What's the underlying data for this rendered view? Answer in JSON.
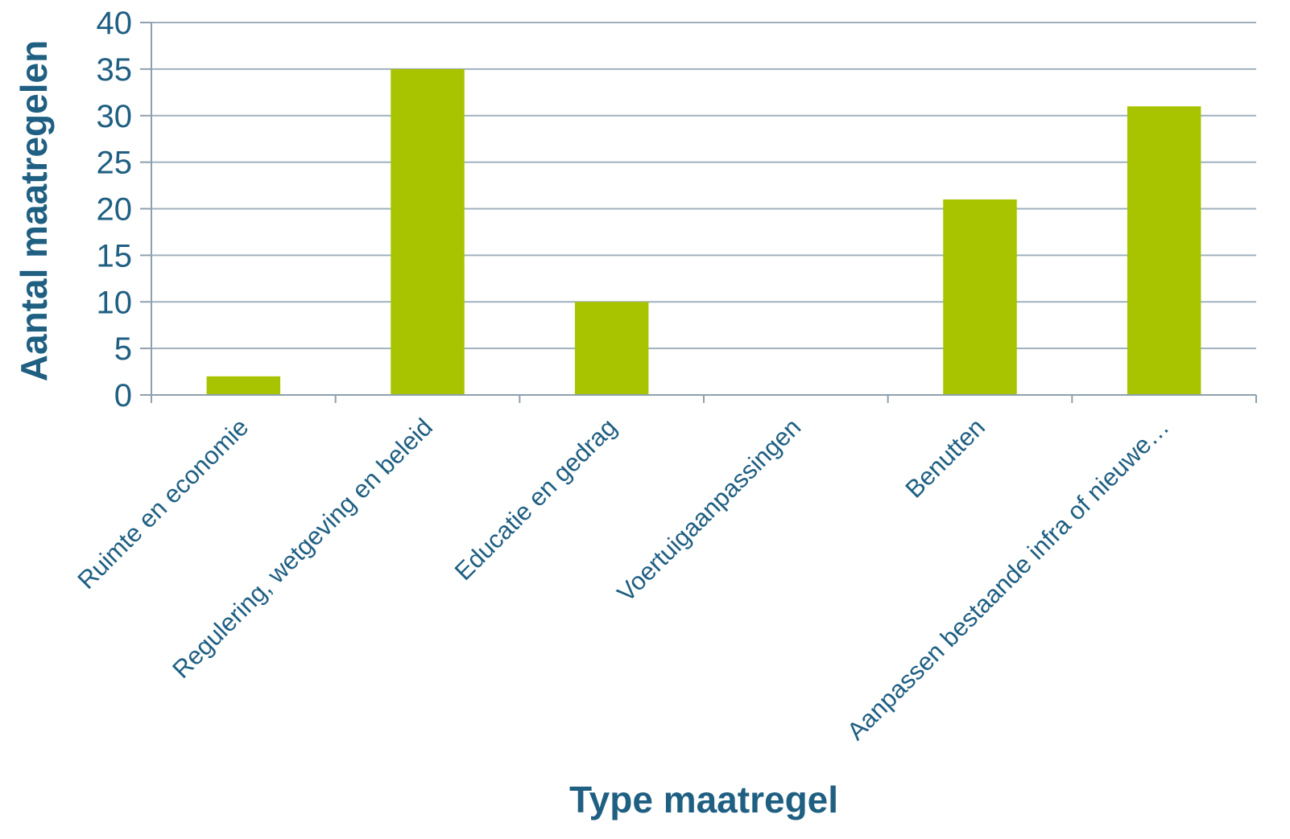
{
  "chart_data": {
    "type": "bar",
    "title": "",
    "xlabel": "Type maatregel",
    "ylabel": "Aantal maatregelen",
    "categories": [
      "Ruimte en economie",
      "Regulering, wetgeving en beleid",
      "Educatie en gedrag",
      "Voertuigaanpassingen",
      "Benutten",
      "Aanpassen bestaande infra of nieuwe…"
    ],
    "values": [
      2,
      35,
      10,
      0,
      21,
      31
    ],
    "ylim": [
      0,
      40
    ],
    "yticks": [
      0,
      5,
      10,
      15,
      20,
      25,
      30,
      35,
      40
    ],
    "grid": true,
    "legend": "none",
    "colors": {
      "bar": "#a8c300",
      "grid": "#9fb0bd",
      "axis": "#8ea0ad",
      "text": "#1f5f82"
    }
  }
}
